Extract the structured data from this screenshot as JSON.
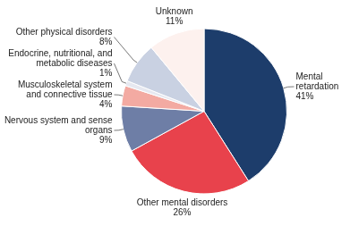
{
  "chart_data": {
    "type": "pie",
    "categories": [
      "Mental retardation",
      "Other mental disorders",
      "Nervous system and sense organs",
      "Musculoskeletal system and connective tissue",
      "Endocrine, nutritional, and metabolic diseases",
      "Other physical disorders",
      "Unknown"
    ],
    "values": [
      41,
      26,
      9,
      4,
      1,
      8,
      11
    ],
    "value_labels": [
      "41%",
      "26%",
      "9%",
      "4%",
      "1%",
      "8%",
      "11%"
    ],
    "colors": [
      "#1d3d6b",
      "#e8424c",
      "#6e7ea6",
      "#f3aaa2",
      "#e6e8f0",
      "#c9d1e2",
      "#fdf1ee"
    ],
    "data_labels": true
  }
}
